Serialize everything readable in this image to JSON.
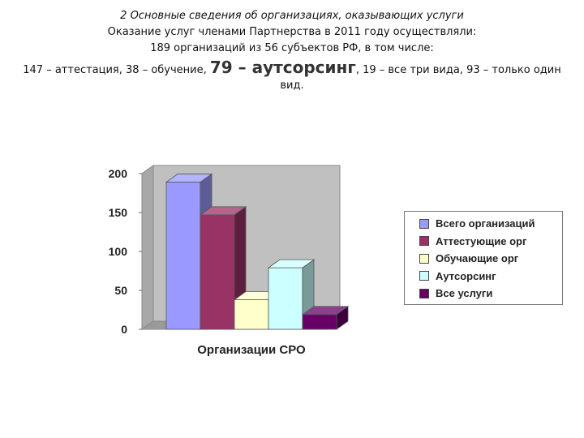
{
  "header": {
    "title": "2 Основные сведения об организациях, оказывающих услуги",
    "line1": "Оказание услуг членами Партнерства в 2011 году осуществляли:",
    "line2": "189 организаций из 56 субъектов РФ, в том числе:",
    "stats_pre": "147 – аттестация, 38 – обучение, ",
    "stats_big": "79 – аутсорсинг",
    "stats_post": ", 19 – все три вида, 93 – только один",
    "stats_tail": "вид."
  },
  "chart_data": {
    "type": "bar",
    "title": "",
    "xlabel": "Организации СРО",
    "ylabel": "",
    "ylim": [
      0,
      200
    ],
    "yticks": [
      "0",
      "50",
      "100",
      "150",
      "200"
    ],
    "grid": false,
    "legend_position": "right",
    "categories": [
      "Организации СРО"
    ],
    "series": [
      {
        "name": "Всего организаций",
        "values": [
          189
        ],
        "color": "#9999ff"
      },
      {
        "name": "Аттестующие орг",
        "values": [
          147
        ],
        "color": "#993366"
      },
      {
        "name": "Обучающие орг",
        "values": [
          38
        ],
        "color": "#ffffcc"
      },
      {
        "name": "Аутсорсинг",
        "values": [
          79
        ],
        "color": "#ccffff"
      },
      {
        "name": "Все услуги",
        "values": [
          19
        ],
        "color": "#660066"
      }
    ]
  }
}
